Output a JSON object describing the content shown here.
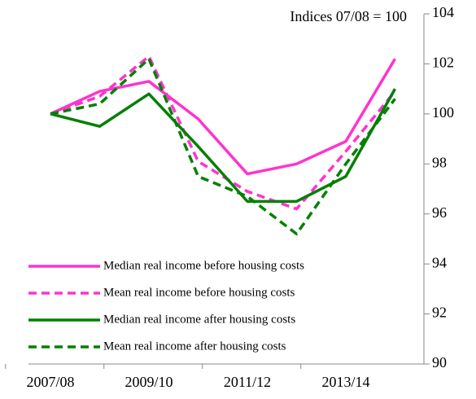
{
  "chart_data": {
    "type": "line",
    "title": "Indices 07/08 = 100",
    "categories": [
      "2007/08",
      null,
      "2009/10",
      null,
      "2011/12",
      null,
      "2013/14",
      null
    ],
    "series": [
      {
        "name": "Median real income before housing costs",
        "color": "#ff33cc",
        "dashed": false,
        "values": [
          100,
          100.9,
          101.3,
          99.8,
          97.6,
          98.0,
          98.9,
          102.2
        ]
      },
      {
        "name": "Mean real income before housing costs",
        "color": "#ff33cc",
        "dashed": true,
        "values": [
          100,
          100.7,
          102.3,
          98.1,
          96.9,
          96.2,
          98.5,
          100.9
        ]
      },
      {
        "name": "Median real income after housing costs",
        "color": "#008000",
        "dashed": false,
        "values": [
          100,
          99.5,
          100.8,
          98.7,
          96.5,
          96.5,
          97.5,
          101.0
        ]
      },
      {
        "name": "Mean real income after housing costs",
        "color": "#008000",
        "dashed": true,
        "values": [
          100,
          100.4,
          102.2,
          97.5,
          96.7,
          95.2,
          98.0,
          100.6
        ]
      }
    ],
    "ylim": [
      90,
      104
    ],
    "yticks": [
      90,
      92,
      94,
      96,
      98,
      100,
      102,
      104
    ],
    "y_axis_side": "right",
    "legend": "lower left",
    "grid": false
  }
}
